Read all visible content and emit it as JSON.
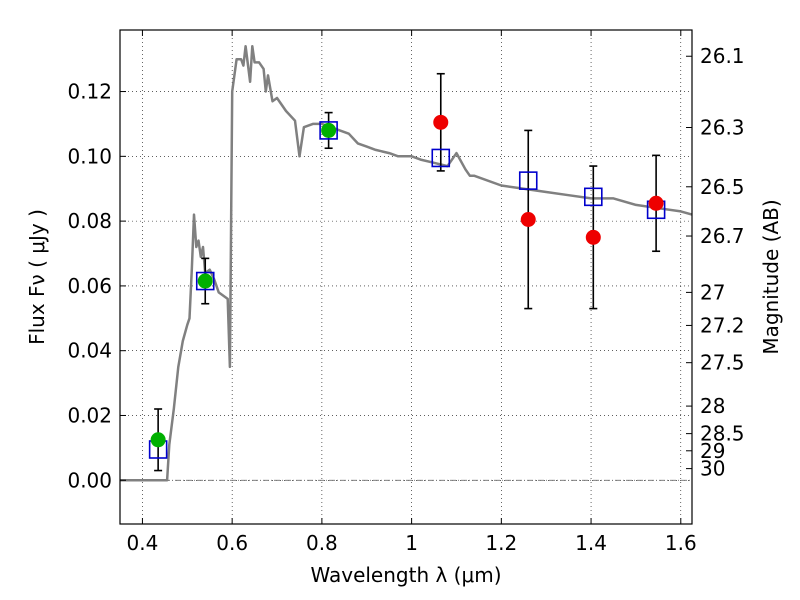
{
  "chart_data": {
    "type": "scatter",
    "title": "",
    "xlabel": "Wavelength  λ (μm)",
    "ylabel": "Flux  Fν  ( μJy )",
    "ylabel_right": "Magnitude (AB)",
    "xlim": [
      0.35,
      1.625
    ],
    "ylim": [
      -0.0135,
      0.139
    ],
    "grid": true,
    "x_ticks": [
      {
        "value": 0.4,
        "label": "0.4"
      },
      {
        "value": 0.6,
        "label": "0.6"
      },
      {
        "value": 0.8,
        "label": "0.8"
      },
      {
        "value": 1.0,
        "label": "1"
      },
      {
        "value": 1.2,
        "label": "1.2"
      },
      {
        "value": 1.4,
        "label": "1.4"
      },
      {
        "value": 1.6,
        "label": "1.6"
      }
    ],
    "y_ticks": [
      {
        "value": 0.0,
        "label": "0.00"
      },
      {
        "value": 0.02,
        "label": "0.02"
      },
      {
        "value": 0.04,
        "label": "0.04"
      },
      {
        "value": 0.06,
        "label": "0.06"
      },
      {
        "value": 0.08,
        "label": "0.08"
      },
      {
        "value": 0.1,
        "label": "0.10"
      },
      {
        "value": 0.12,
        "label": "0.12"
      }
    ],
    "right_ticks": [
      {
        "flux": 0.1309,
        "label": "26.1"
      },
      {
        "flux": 0.1089,
        "label": "26.3"
      },
      {
        "flux": 0.0906,
        "label": "26.5"
      },
      {
        "flux": 0.0754,
        "label": "26.7"
      },
      {
        "flux": 0.058,
        "label": "27"
      },
      {
        "flux": 0.0478,
        "label": "27.2"
      },
      {
        "flux": 0.0363,
        "label": "27.5"
      },
      {
        "flux": 0.0229,
        "label": "28"
      },
      {
        "flux": 0.0144,
        "label": "28.5"
      },
      {
        "flux": 0.0091,
        "label": "29"
      },
      {
        "flux": 0.0036,
        "label": "30"
      }
    ],
    "colors": {
      "sed": "#808080",
      "model_squares": "#0000cc",
      "green_points": "#00b000",
      "red_points": "#ee0000",
      "errorbars": "#000000"
    },
    "series": [
      {
        "kind": "line",
        "x": [
          0.35,
          0.44,
          0.455,
          0.46,
          0.47,
          0.48,
          0.49,
          0.5,
          0.505,
          0.51,
          0.515,
          0.52,
          0.525,
          0.53,
          0.535,
          0.54,
          0.55,
          0.56,
          0.565,
          0.57,
          0.58,
          0.59,
          0.595,
          0.6,
          0.61,
          0.62,
          0.625,
          0.63,
          0.64,
          0.645,
          0.65,
          0.66,
          0.67,
          0.675,
          0.68,
          0.69,
          0.7,
          0.72,
          0.74,
          0.75,
          0.76,
          0.78,
          0.8,
          0.82,
          0.84,
          0.86,
          0.88,
          0.9,
          0.92,
          0.95,
          0.97,
          1.0,
          1.02,
          1.05,
          1.08,
          1.1,
          1.12,
          1.13,
          1.14,
          1.2,
          1.25,
          1.3,
          1.35,
          1.4,
          1.45,
          1.5,
          1.55,
          1.6,
          1.625
        ],
        "y": [
          0.0,
          0.0,
          0.0,
          0.011,
          0.022,
          0.035,
          0.043,
          0.048,
          0.05,
          0.065,
          0.082,
          0.072,
          0.074,
          0.069,
          0.072,
          0.064,
          0.065,
          0.062,
          0.06,
          0.058,
          0.057,
          0.056,
          0.035,
          0.12,
          0.13,
          0.13,
          0.128,
          0.134,
          0.123,
          0.134,
          0.129,
          0.129,
          0.127,
          0.12,
          0.125,
          0.117,
          0.118,
          0.114,
          0.111,
          0.1,
          0.109,
          0.11,
          0.11,
          0.109,
          0.108,
          0.107,
          0.104,
          0.103,
          0.102,
          0.101,
          0.1,
          0.1,
          0.099,
          0.098,
          0.097,
          0.101,
          0.096,
          0.094,
          0.094,
          0.091,
          0.09,
          0.089,
          0.088,
          0.087,
          0.087,
          0.085,
          0.084,
          0.083,
          0.082
        ]
      },
      {
        "kind": "squares",
        "x": [
          0.435,
          0.54,
          0.815,
          1.065,
          1.26,
          1.405,
          1.545
        ],
        "y": [
          0.0095,
          0.0615,
          0.108,
          0.0995,
          0.0925,
          0.0875,
          0.0835
        ]
      },
      {
        "kind": "points",
        "x": [
          0.435,
          0.54,
          0.815
        ],
        "y": [
          0.0125,
          0.0615,
          0.108
        ],
        "yerr": [
          0.0095,
          0.007,
          0.0055
        ]
      },
      {
        "kind": "points",
        "x": [
          1.065,
          1.26,
          1.405,
          1.545
        ],
        "y": [
          0.1105,
          0.0805,
          0.075,
          0.0855
        ],
        "yerr": [
          0.015,
          0.0275,
          0.022,
          0.0148
        ]
      }
    ]
  }
}
